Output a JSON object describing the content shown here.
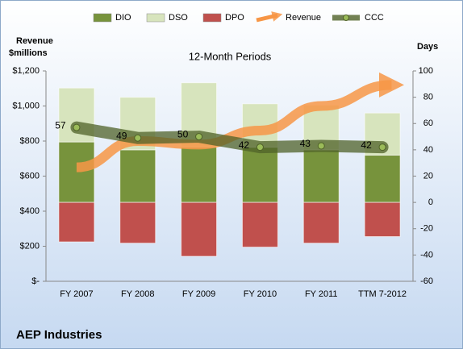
{
  "chart_data": {
    "type": "combo",
    "title": "AEP Industries",
    "subtitle": "12-Month Periods",
    "ylabel": [
      "Revenue",
      "$millions"
    ],
    "y2label": "Days",
    "categories": [
      "FY 2007",
      "FY 2008",
      "FY 2009",
      "FY 2010",
      "FY 2011",
      "TTM 7-2012"
    ],
    "ylim": [
      0,
      1200
    ],
    "yticks": [
      {
        "value": 0,
        "label": "$-"
      },
      {
        "value": 200,
        "label": "$200"
      },
      {
        "value": 400,
        "label": "$400"
      },
      {
        "value": 600,
        "label": "$600"
      },
      {
        "value": 800,
        "label": "$800"
      },
      {
        "value": 1000,
        "label": "$1,000"
      },
      {
        "value": 1200,
        "label": "$1,200"
      }
    ],
    "y2lim": [
      -60,
      100
    ],
    "y2ticks": [
      -60,
      -40,
      -20,
      0,
      20,
      40,
      60,
      80,
      100
    ],
    "series": [
      {
        "name": "DIO",
        "kind": "bar",
        "axis": "y2",
        "color": "#77933c",
        "values": [
          46,
          40,
          42,
          42,
          40,
          36
        ]
      },
      {
        "name": "DSO",
        "kind": "bar",
        "axis": "y2",
        "color": "#d7e4bd",
        "values": [
          41,
          40,
          49,
          33,
          34,
          32
        ]
      },
      {
        "name": "DPO",
        "kind": "bar",
        "axis": "y2",
        "color": "#c0504d",
        "values": [
          -30,
          -31,
          -41,
          -34,
          -31,
          -26
        ]
      },
      {
        "name": "Revenue",
        "kind": "arrow",
        "axis": "y",
        "color": "#f79646",
        "values": [
          650,
          800,
          780,
          860,
          1000,
          1120
        ]
      },
      {
        "name": "CCC",
        "kind": "line",
        "axis": "y2",
        "color": "#4f6228",
        "values": [
          57,
          49,
          50,
          42,
          43,
          42
        ]
      }
    ]
  }
}
